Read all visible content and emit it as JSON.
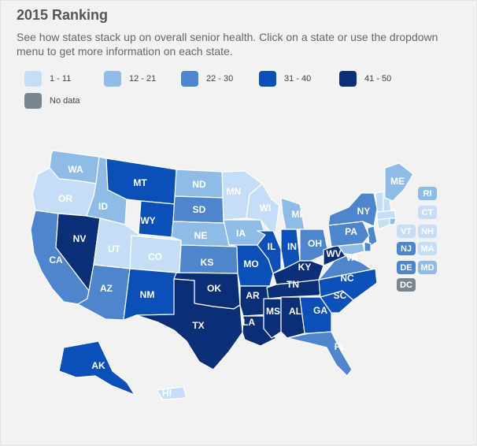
{
  "title": "2015 Ranking",
  "subtitle": "See how states stack up on overall senior health. Click on a state or use the dropdown menu to get more information on each state.",
  "colors": {
    "c1": "#c6def5",
    "c2": "#8fbce6",
    "c3": "#4d86cc",
    "c4": "#0b4fb7",
    "c5": "#0a2f77",
    "nodata": "#7b8590"
  },
  "legend": [
    {
      "label": "1 - 11",
      "color": "#c6def5"
    },
    {
      "label": "12 - 21",
      "color": "#8fbce6"
    },
    {
      "label": "22 - 30",
      "color": "#4d86cc"
    },
    {
      "label": "31 - 40",
      "color": "#0b4fb7"
    },
    {
      "label": "41 - 50",
      "color": "#0a2f77"
    },
    {
      "label": "No data",
      "color": "#7b8590"
    }
  ],
  "states": {
    "WA": "12 - 21",
    "OR": "1 - 11",
    "CA": "22 - 30",
    "NV": "41 - 50",
    "ID": "12 - 21",
    "MT": "31 - 40",
    "WY": "31 - 40",
    "UT": "1 - 11",
    "CO": "1 - 11",
    "AZ": "22 - 30",
    "NM": "31 - 40",
    "ND": "12 - 21",
    "SD": "22 - 30",
    "NE": "12 - 21",
    "KS": "22 - 30",
    "OK": "41 - 50",
    "TX": "41 - 50",
    "MN": "1 - 11",
    "IA": "12 - 21",
    "MO": "31 - 40",
    "AR": "41 - 50",
    "LA": "41 - 50",
    "WI": "1 - 11",
    "IL": "31 - 40",
    "MI": "12 - 21",
    "IN": "31 - 40",
    "OH": "22 - 30",
    "KY": "41 - 50",
    "TN": "41 - 50",
    "MS": "41 - 50",
    "AL": "41 - 50",
    "GA": "31 - 40",
    "FL": "22 - 30",
    "SC": "31 - 40",
    "NC": "31 - 40",
    "VA": "22 - 30",
    "WV": "41 - 50",
    "PA": "22 - 30",
    "NY": "22 - 30",
    "ME": "12 - 21",
    "AK": "31 - 40",
    "HI": "1 - 11",
    "VT": "1 - 11",
    "NH": "1 - 11",
    "MA": "1 - 11",
    "RI": "12 - 21",
    "CT": "1 - 11",
    "NJ": "22 - 30",
    "DE": "22 - 30",
    "MD": "12 - 21",
    "DC": "No data"
  }
}
